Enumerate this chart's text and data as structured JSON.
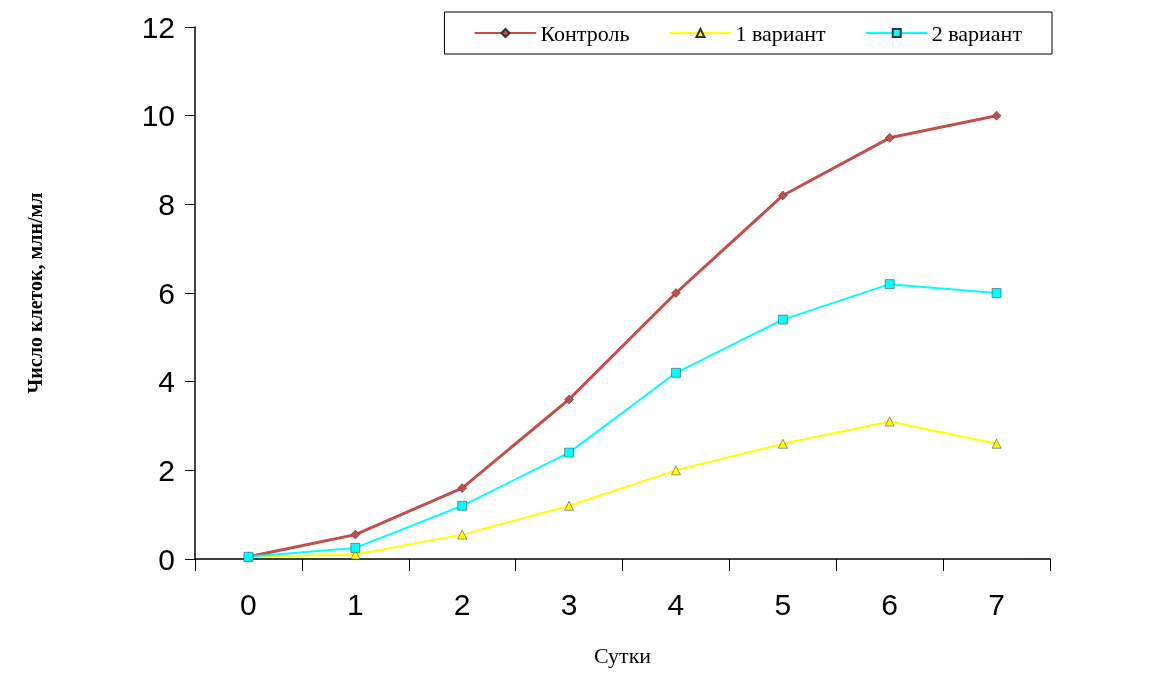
{
  "chart_data": {
    "type": "line",
    "xlabel": "Сутки",
    "ylabel": "Число клеток, млн/мл",
    "categories": [
      "0",
      "1",
      "2",
      "3",
      "4",
      "5",
      "6",
      "7"
    ],
    "series": [
      {
        "name": "Контроль",
        "color": "#c0504d",
        "marker": "diamond",
        "values": [
          0.05,
          0.55,
          1.6,
          3.6,
          6.0,
          8.2,
          9.5,
          10.0
        ]
      },
      {
        "name": "1 вариант",
        "color": "#ffff00",
        "marker": "triangle",
        "values": [
          0.05,
          0.1,
          0.55,
          1.2,
          2.0,
          2.6,
          3.1,
          2.6
        ]
      },
      {
        "name": "2 вариант",
        "color": "#00ffff",
        "marker": "square",
        "values": [
          0.05,
          0.25,
          1.2,
          2.4,
          4.2,
          5.4,
          6.2,
          6.0
        ]
      }
    ],
    "ylim": [
      0,
      12
    ],
    "yticks": [
      0,
      2,
      4,
      6,
      8,
      10,
      12
    ],
    "grid": false,
    "legend": "top right",
    "line_style": "solid"
  }
}
